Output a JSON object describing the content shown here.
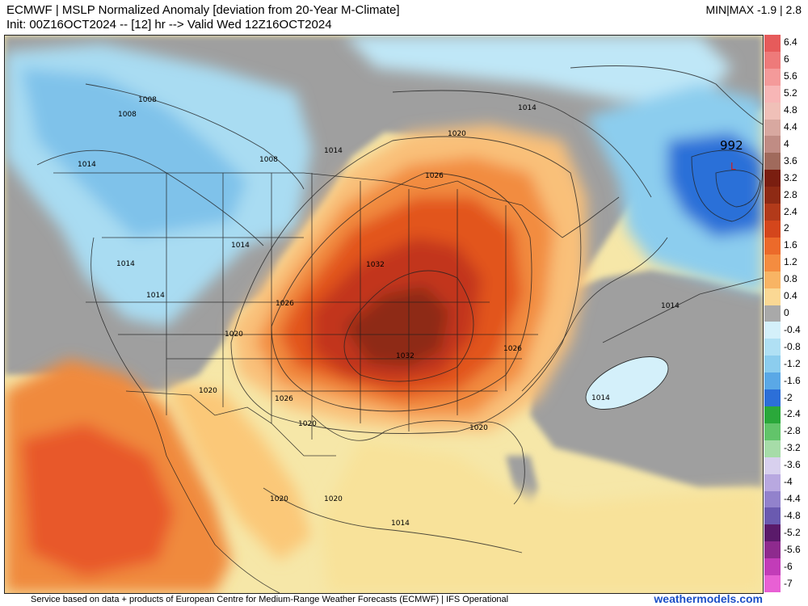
{
  "header": {
    "title_line1": "ECMWF | MSLP Normalized Anomaly [deviation from 20-Year M-Climate]",
    "title_line2": "Init: 00Z16OCT2024 -- [12] hr --> Valid Wed 12Z16OCT2024",
    "minmax": "MIN|MAX -1.9 | 2.8"
  },
  "colorbar": {
    "labels": [
      "6.4",
      "6",
      "5.6",
      "5.2",
      "4.8",
      "4.4",
      "4",
      "3.6",
      "3.2",
      "2.8",
      "2.4",
      "2",
      "1.6",
      "1.2",
      "0.8",
      "0.4",
      "0",
      "-0.4",
      "-0.8",
      "-1.2",
      "-1.6",
      "-2",
      "-2.4",
      "-2.8",
      "-3.2",
      "-3.6",
      "-4",
      "-4.4",
      "-4.8",
      "-5.2",
      "-5.6",
      "-6",
      "-7"
    ],
    "colors": [
      "#e65b5b",
      "#ee7a7a",
      "#f49a9a",
      "#f7b6b6",
      "#f0c0b8",
      "#d8a8a0",
      "#c08c84",
      "#a06a5c",
      "#7a1e10",
      "#8e2a14",
      "#b23a1a",
      "#d4461c",
      "#ec6a2a",
      "#f48c40",
      "#f8b464",
      "#fad894",
      "#a9a9a9",
      "#d4f0fa",
      "#b0e0f4",
      "#8ccdee",
      "#5aa8e6",
      "#2c6fd8",
      "#2aa83a",
      "#62c46a",
      "#a6dca8",
      "#d8d0ee",
      "#b8a8e0",
      "#9282cc",
      "#6a5ab0",
      "#5a1a6a",
      "#8e2a8e",
      "#c23cb8",
      "#e860d4"
    ]
  },
  "map": {
    "isobar_labels": [
      "1008",
      "1008",
      "1008",
      "1014",
      "1014",
      "1014",
      "1014",
      "1014",
      "1014",
      "1020",
      "1020",
      "1020",
      "1020",
      "1020",
      "1020",
      "1020",
      "1026",
      "1026",
      "1026",
      "1026",
      "1032",
      "1032",
      "1014",
      "1014",
      "1014"
    ],
    "low_label": "992",
    "low_marker": "L"
  },
  "footer": {
    "credit": "Service based on data + products of European Centre for Medium-Range Weather Forecasts (ECMWF) | IFS Operational",
    "brand": "weathermodels.com"
  }
}
